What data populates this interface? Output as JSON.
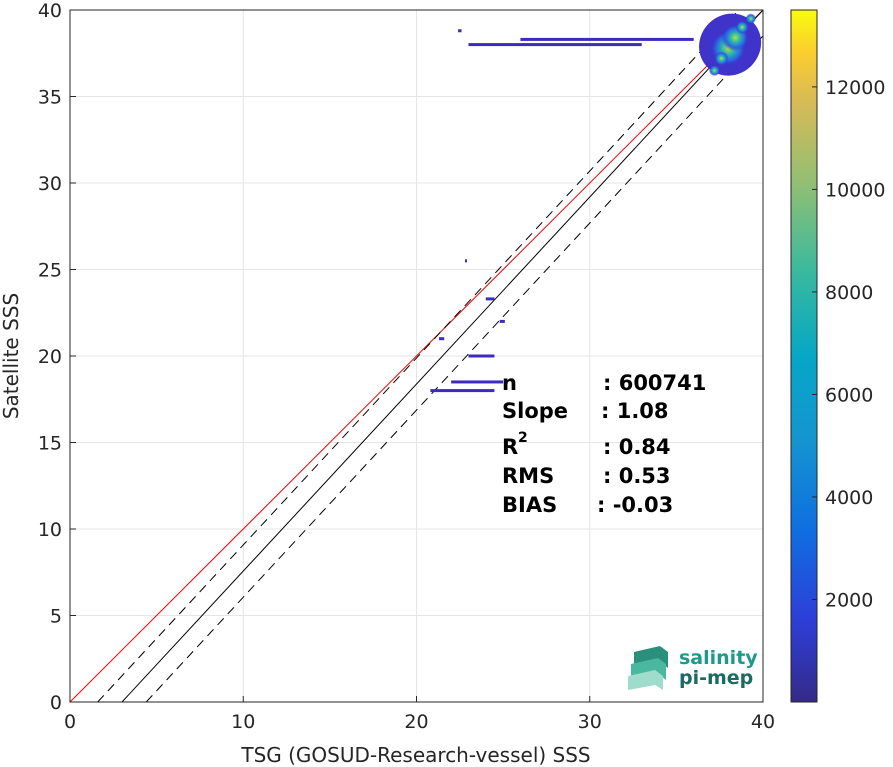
{
  "chart_data": {
    "type": "heatmap",
    "xlabel": "TSG (GOSUD-Research-vessel) SSS",
    "ylabel": "Satellite SSS",
    "xlim": [
      0,
      40
    ],
    "ylim": [
      0,
      40
    ],
    "xticks": [
      "0",
      "10",
      "20",
      "30",
      "40"
    ],
    "yticks": [
      "0",
      "5",
      "10",
      "15",
      "20",
      "25",
      "30",
      "35",
      "40"
    ],
    "grid": true,
    "colorbar": {
      "range": [
        0,
        13500
      ],
      "ticks": [
        "2000",
        "4000",
        "6000",
        "8000",
        "10000",
        "12000"
      ],
      "colormap": "parula"
    },
    "stats": [
      {
        "name": "n",
        "value": ": 600741"
      },
      {
        "name": "Slope",
        "value": ": 1.08"
      },
      {
        "name": "R",
        "sup": "2",
        "value": ": 0.84"
      },
      {
        "name": "RMS",
        "value": ": 0.53"
      },
      {
        "name": "BIAS",
        "value": ": -0.03"
      }
    ],
    "lines": {
      "identity": {
        "x": [
          0,
          40
        ],
        "y": [
          0,
          40
        ],
        "color": "#ff0000"
      },
      "fit": {
        "x": [
          3,
          40
        ],
        "y": [
          0,
          40
        ],
        "color": "#000000"
      },
      "fit_band_upper": {
        "x": [
          1.6,
          40
        ],
        "y": [
          0,
          41.5
        ],
        "color": "#000000",
        "dash": true
      },
      "fit_band_lower": {
        "x": [
          4.4,
          40
        ],
        "y": [
          0,
          38.5
        ],
        "color": "#000000",
        "dash": true
      }
    },
    "density_clusters": [
      {
        "x": 38.0,
        "y": 37.8,
        "count": 13000
      },
      {
        "x": 38.4,
        "y": 38.4,
        "count": 9000
      },
      {
        "x": 37.6,
        "y": 37.2,
        "count": 3000
      },
      {
        "x": 38.8,
        "y": 39.0,
        "count": 2500
      },
      {
        "x": 37.2,
        "y": 36.5,
        "count": 1500
      },
      {
        "x": 39.3,
        "y": 39.5,
        "count": 1200
      }
    ],
    "sparse_points": [
      {
        "x0": 23.0,
        "x1": 33.0,
        "y": 38.0
      },
      {
        "x0": 26.0,
        "x1": 36.0,
        "y": 38.3
      },
      {
        "x0": 20.8,
        "x1": 24.5,
        "y": 18.0
      },
      {
        "x0": 22.0,
        "x1": 25.0,
        "y": 18.5
      },
      {
        "x0": 23.0,
        "x1": 24.5,
        "y": 20.0
      },
      {
        "x0": 24.0,
        "x1": 24.5,
        "y": 23.3
      },
      {
        "x0": 22.8,
        "x1": 22.9,
        "y": 25.5
      },
      {
        "x0": 24.8,
        "x1": 25.1,
        "y": 22.0
      },
      {
        "x0": 21.3,
        "x1": 21.6,
        "y": 21.0
      },
      {
        "x0": 22.4,
        "x1": 22.6,
        "y": 38.8
      }
    ]
  },
  "logo": {
    "line1": "salinity",
    "line2": "pi-mep"
  }
}
